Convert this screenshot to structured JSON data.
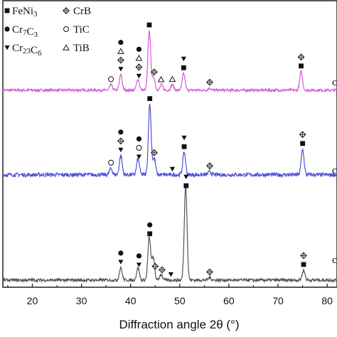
{
  "chart_data": {
    "type": "line",
    "title": "",
    "xlabel": "Diffraction angle 2θ (°)",
    "ylabel": "",
    "xlim": [
      14,
      82
    ],
    "xticks": [
      20,
      30,
      40,
      50,
      60,
      70,
      80
    ],
    "xtick_labels": [
      "20",
      "30",
      "40",
      "50",
      "60",
      "70",
      "80"
    ],
    "grid": false,
    "legend": [
      {
        "marker": "filled-square",
        "label": "FeNi3"
      },
      {
        "marker": "diamond-cross",
        "label": "CrB"
      },
      {
        "marker": "filled-circle",
        "label": "Cr7C3"
      },
      {
        "marker": "open-circle",
        "label": "TiC"
      },
      {
        "marker": "filled-triangle-down",
        "label": "Cr23C6"
      },
      {
        "marker": "open-triangle",
        "label": "TiB"
      }
    ],
    "legend_placement": "top-left",
    "series": [
      {
        "name": "co",
        "color": "#d35bd3",
        "baseline": 0.18,
        "peaks": [
          [
            36.0,
            0.12
          ],
          [
            38.0,
            0.35
          ],
          [
            41.5,
            0.25
          ],
          [
            43.8,
            1.35
          ],
          [
            44.7,
            0.3
          ],
          [
            46.3,
            0.12
          ],
          [
            48.5,
            0.12
          ],
          [
            50.8,
            0.38
          ],
          [
            56.1,
            0.05
          ],
          [
            74.7,
            0.42
          ]
        ],
        "markers": [
          {
            "x": 36.0,
            "stack": [
              "open-circle"
            ]
          },
          {
            "x": 38.0,
            "stack": [
              "filled-circle",
              "open-triangle",
              "diamond-cross",
              "filled-triangle-down"
            ]
          },
          {
            "x": 41.7,
            "stack": [
              "filled-circle",
              "open-triangle",
              "diamond-cross",
              "filled-triangle-down"
            ]
          },
          {
            "x": 43.8,
            "stack": [
              "filled-square"
            ]
          },
          {
            "x": 44.8,
            "stack": [
              "diamond-cross"
            ]
          },
          {
            "x": 46.2,
            "stack": [
              "open-triangle"
            ]
          },
          {
            "x": 48.5,
            "stack": [
              "open-triangle"
            ]
          },
          {
            "x": 50.8,
            "stack": [
              "filled-triangle-down",
              "filled-square"
            ]
          },
          {
            "x": 56.1,
            "stack": [
              "diamond-cross"
            ]
          },
          {
            "x": 74.7,
            "stack": [
              "diamond-cross",
              "filled-square"
            ]
          }
        ]
      },
      {
        "name": "co",
        "color": "#4f4fd6",
        "baseline": 0.18,
        "peaks": [
          [
            36.0,
            0.1
          ],
          [
            38.0,
            0.3
          ],
          [
            41.5,
            0.25
          ],
          [
            43.9,
            1.1
          ],
          [
            44.8,
            0.25
          ],
          [
            50.9,
            0.35
          ],
          [
            56.1,
            0.05
          ],
          [
            75.0,
            0.4
          ]
        ],
        "markers": [
          {
            "x": 36.0,
            "stack": [
              "open-circle"
            ]
          },
          {
            "x": 38.0,
            "stack": [
              "filled-circle",
              "diamond-cross",
              "filled-triangle-down"
            ]
          },
          {
            "x": 41.7,
            "stack": [
              "filled-circle",
              "open-circle",
              "filled-triangle-down"
            ]
          },
          {
            "x": 43.9,
            "stack": [
              "filled-square"
            ]
          },
          {
            "x": 44.8,
            "stack": [
              "diamond-cross"
            ]
          },
          {
            "x": 48.5,
            "stack": [
              "filled-triangle-down"
            ]
          },
          {
            "x": 50.9,
            "stack": [
              "filled-triangle-down",
              "filled-square"
            ]
          },
          {
            "x": 56.1,
            "stack": [
              "diamond-cross"
            ]
          },
          {
            "x": 75.0,
            "stack": [
              "diamond-cross",
              "filled-square"
            ]
          }
        ]
      },
      {
        "name": "co",
        "color": "#555555",
        "baseline": 0.0,
        "peaks": [
          [
            38.0,
            0.25
          ],
          [
            41.5,
            0.25
          ],
          [
            43.8,
            0.85
          ],
          [
            44.6,
            0.45
          ],
          [
            46.2,
            0.12
          ],
          [
            51.2,
            1.9
          ],
          [
            56.1,
            0.05
          ],
          [
            75.2,
            0.2
          ]
        ],
        "markers": [
          {
            "x": 38.0,
            "stack": [
              "filled-circle",
              "filled-triangle-down"
            ]
          },
          {
            "x": 41.7,
            "stack": [
              "filled-circle",
              "filled-triangle-down"
            ]
          },
          {
            "x": 43.9,
            "stack": [
              "filled-circle",
              "filled-square"
            ]
          },
          {
            "x": 45.0,
            "stack": [
              "diamond-cross"
            ]
          },
          {
            "x": 46.4,
            "stack": [
              "diamond-cross"
            ]
          },
          {
            "x": 48.2,
            "stack": [
              "filled-triangle-down"
            ]
          },
          {
            "x": 51.3,
            "stack": [
              "filled-triangle-down",
              "filled-square"
            ]
          },
          {
            "x": 56.1,
            "stack": [
              "diamond-cross"
            ]
          },
          {
            "x": 75.2,
            "stack": [
              "diamond-cross",
              "filled-square"
            ]
          }
        ]
      }
    ]
  }
}
